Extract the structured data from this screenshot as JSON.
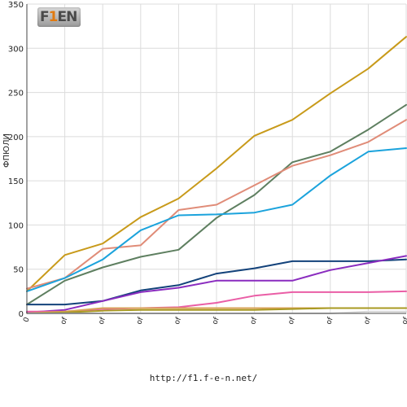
{
  "logo": {
    "text_left": "F",
    "text_mid": "1",
    "text_right": "EN"
  },
  "footer": {
    "url": "http://f1.f-e-n.net/"
  },
  "chart_data": {
    "type": "line",
    "title": "",
    "xlabel": "",
    "ylabel": "ФПЮЛИ",
    "ylim": [
      0,
      350
    ],
    "yticks": [
      0,
      50,
      100,
      150,
      200,
      250,
      300,
      350
    ],
    "grid": true,
    "categories": [
      "0",
      "of",
      "of",
      "of",
      "of",
      "of",
      "of",
      "of",
      "of",
      "of",
      "of"
    ],
    "series": [
      {
        "color": "#c89a1a",
        "values": [
          25,
          66,
          79,
          109,
          130,
          164,
          201,
          219,
          249,
          277,
          313
        ]
      },
      {
        "color": "#5e7f60",
        "values": [
          10,
          37,
          52,
          64,
          72,
          108,
          134,
          171,
          183,
          208,
          236
        ]
      },
      {
        "color": "#e08c78",
        "values": [
          28,
          40,
          73,
          77,
          117,
          123,
          145,
          167,
          179,
          194,
          219
        ]
      },
      {
        "color": "#1ba3dc",
        "values": [
          25,
          40,
          61,
          94,
          111,
          112,
          114,
          123,
          156,
          183,
          187
        ]
      },
      {
        "color": "#13427a",
        "values": [
          10,
          10,
          14,
          26,
          32,
          45,
          51,
          59,
          59,
          59,
          61
        ]
      },
      {
        "color": "#8a2cbf",
        "values": [
          1,
          4,
          14,
          24,
          29,
          37,
          37,
          37,
          49,
          57,
          65
        ]
      },
      {
        "color": "#ea5ea6",
        "values": [
          2,
          2,
          5,
          6,
          7,
          12,
          20,
          24,
          24,
          24,
          25
        ]
      },
      {
        "color": "#d8a35a",
        "values": [
          0,
          2,
          6,
          6,
          6,
          6,
          6,
          6,
          6,
          6,
          6
        ]
      },
      {
        "color": "#a89a22",
        "values": [
          0,
          1,
          3,
          4,
          4,
          4,
          4,
          5,
          6,
          6,
          6
        ]
      },
      {
        "color": "#d8d8d8",
        "values": [
          0,
          0,
          0,
          0,
          0,
          0,
          0,
          0,
          0,
          2,
          2
        ]
      }
    ]
  }
}
